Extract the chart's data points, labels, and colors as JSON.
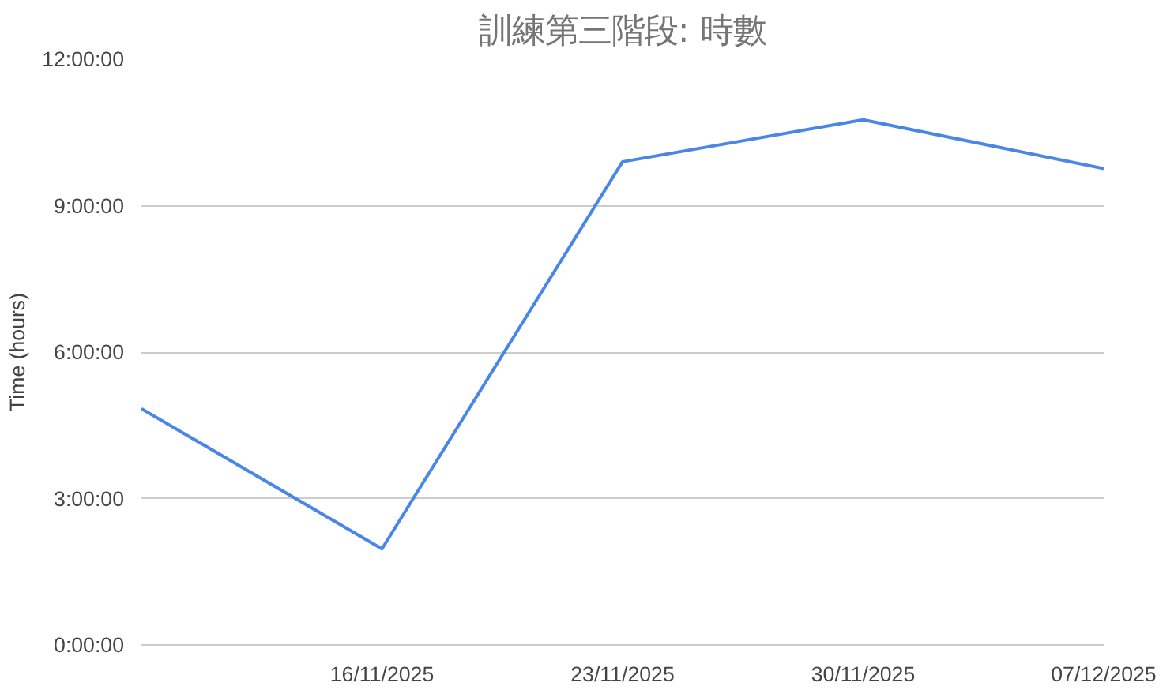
{
  "chart_data": {
    "type": "line",
    "title": "訓練第三階段: 時數",
    "ylabel": "Time (hours)",
    "categories": [
      null,
      "16/11/2025",
      "23/11/2025",
      "30/11/2025",
      "07/12/2025"
    ],
    "series": [
      {
        "color": "#4a86e8",
        "values": [
          4.84,
          1.97,
          9.9,
          10.76,
          9.76
        ]
      }
    ],
    "ylim": [
      0,
      12
    ],
    "yticks": [
      {
        "value": 0,
        "label": "0:00:00"
      },
      {
        "value": 3,
        "label": "3:00:00"
      },
      {
        "value": 6,
        "label": "6:00:00"
      },
      {
        "value": 9,
        "label": "9:00:00"
      },
      {
        "value": 12,
        "label": "12:00:00"
      }
    ],
    "grid": "y",
    "marker": "none",
    "line_style": "solid"
  }
}
